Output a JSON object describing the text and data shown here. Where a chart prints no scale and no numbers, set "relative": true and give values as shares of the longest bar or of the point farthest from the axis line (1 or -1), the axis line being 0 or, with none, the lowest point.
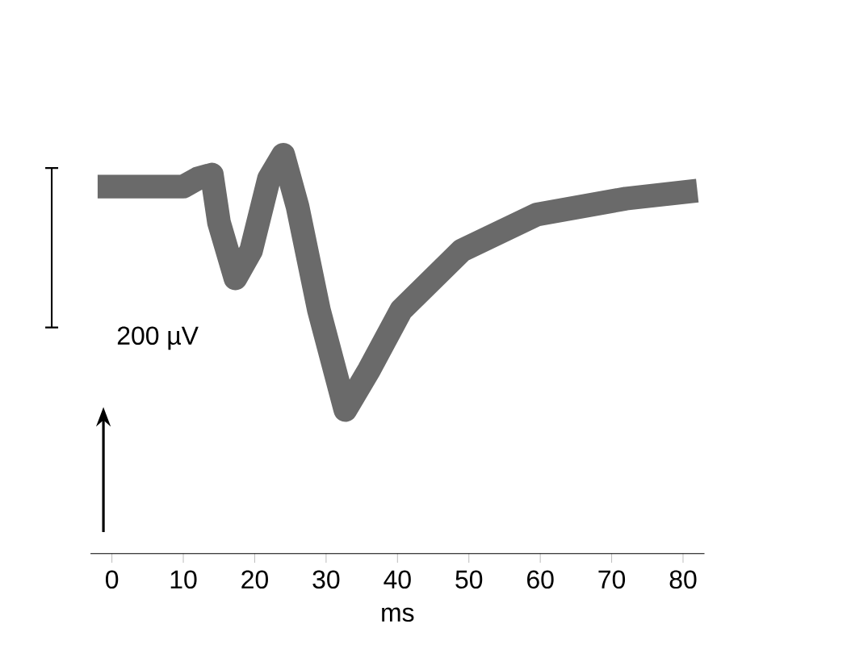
{
  "chart_data": {
    "type": "line",
    "relative": true,
    "xlabel": "ms",
    "color": "#6a6a6a",
    "xlim": [
      -3,
      83
    ],
    "xticks": [
      0,
      10,
      20,
      30,
      40,
      50,
      60,
      70,
      80
    ],
    "x": [
      -2,
      6,
      10,
      12,
      14,
      15,
      17.3,
      19.5,
      22,
      24,
      26,
      29,
      32.7,
      36,
      40.5,
      49,
      59.5,
      72,
      82
    ],
    "values": [
      0.92,
      0.92,
      0.92,
      0.94,
      0.95,
      0.83,
      0.69,
      0.76,
      0.94,
      1.0,
      0.87,
      0.61,
      0.36,
      0.46,
      0.61,
      0.76,
      0.85,
      0.89,
      0.91
    ],
    "annotations": [
      "200 µV"
    ]
  }
}
